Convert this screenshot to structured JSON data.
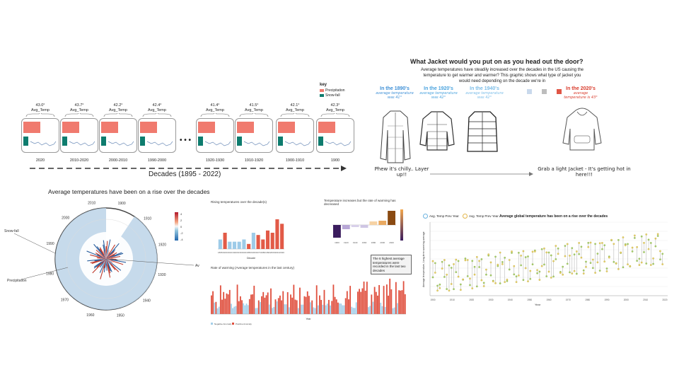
{
  "decade_panel": {
    "key_title": "key",
    "key_items": [
      {
        "label": "Precipitation",
        "color": "#f07a6e"
      },
      {
        "label": "Snow-fall",
        "color": "#0e7c6e"
      }
    ],
    "avg_label": "Avg_Temp",
    "cards": [
      {
        "value": "43.0°",
        "period": "2020"
      },
      {
        "value": "43.7°",
        "period": "2010-2020"
      },
      {
        "value": "42.2°",
        "period": "2000-2010"
      },
      {
        "value": "42.4°",
        "period": "1990-2000"
      },
      {
        "value": "41.4°",
        "period": "1920-1930"
      },
      {
        "value": "41.5°",
        "period": "1910-1920"
      },
      {
        "value": "42.1°",
        "period": "1900-1910"
      },
      {
        "value": "42.3°",
        "period": "1900"
      }
    ],
    "ellipsis": "• • •",
    "axis_label": "Decades (1895 - 2022)"
  },
  "jacket": {
    "title": "What Jacket would you put on as you head out the door?",
    "description": "Average temperatures have steadily increased over the decades in the US causing the temperature to get warmer and warmer? This graphic shows what type of jacket you would need depending on the decade we're in",
    "items": [
      {
        "heading": "In the 1890's",
        "sub": "average temperature",
        "temp": "was 41°"
      },
      {
        "heading": "In the 1920's",
        "sub": "average temperature",
        "temp": "was 42°"
      },
      {
        "heading": "In the 1940's",
        "sub": "average temperature",
        "temp": "was 42°"
      },
      {
        "heading": "In the 2020's",
        "sub": "average",
        "temp": "temperature is 43°"
      }
    ],
    "left_caption": "Phew it's chilly.. Layer up!!",
    "right_caption": "Grab a light Jacket - It's getting hot in here!!!",
    "square_colors": [
      "#c9d9ec",
      "#bdbdbd",
      "#e05545"
    ]
  },
  "radial": {
    "title": "Average temperatures have been on a rise over the decades",
    "labels": {
      "snow": "Snow-fall",
      "precip": "Precipitation",
      "temp": "Av"
    },
    "year_labels": [
      "2010",
      "1900",
      "1910",
      "1920",
      "1930",
      "1940",
      "1950",
      "1960",
      "1970",
      "1980",
      "1990",
      "2000"
    ],
    "legend_ticks": [
      "4",
      "2",
      "0",
      "-2",
      "-4"
    ]
  },
  "dashboard": {
    "top_left_title": "Rising temperatures over the decade(s)",
    "top_right_title": "Temperature increases but the rate of warming has decreased",
    "bottom_title": "Rate of warming (Average temperatures in the last century)",
    "annotation": "The 6 highest average temperatures were recorded in the last two decades",
    "xlabel_decade": "Decade",
    "xlabel_year": "Year",
    "legend_neg": "Negative Anomaly",
    "legend_pos": "Positive Anomaly"
  },
  "global": {
    "title": "Average global temperature has been on a rise over the decades",
    "legend": [
      "Avg. Temp Prev Year",
      "Avg. Temp Prev Year"
    ],
    "ylabel": "Average temperature, Long-term warming average",
    "xlabel": "Year"
  },
  "chart_data": [
    {
      "type": "bar",
      "title": "Rising temperatures over the decade(s)",
      "xlabel": "Decade",
      "categories": [
        "1895",
        "1900",
        "1910",
        "1920",
        "1930",
        "1940",
        "1950",
        "1960",
        "1970",
        "1980",
        "1990",
        "2000",
        "2010",
        "2020"
      ],
      "values": [
        -0.3,
        0.6,
        -0.2,
        -0.2,
        -0.2,
        -0.3,
        0.1,
        -0.6,
        0.5,
        0.3,
        0.7,
        0.6,
        1.2,
        1.0
      ],
      "colors": {
        "negative": "#9dcbe8",
        "positive": "#e25a47"
      }
    },
    {
      "type": "bar",
      "title": "Temperature increases but the rate of warming has decreased",
      "categories": [
        "1900",
        "1920",
        "1940",
        "1960",
        "1980",
        "2000",
        "2020"
      ],
      "values": [
        -0.9,
        -0.3,
        -0.15,
        -0.2,
        0.25,
        0.3,
        1.0
      ]
    },
    {
      "type": "line",
      "title": "Average global temperature has been on a rise over the decades",
      "xlabel": "Year",
      "x": [
        "1900",
        "1910",
        "1920",
        "1930",
        "1940",
        "1950",
        "1960",
        "1970",
        "1980",
        "1990",
        "2000",
        "2010",
        "2020"
      ]
    }
  ]
}
